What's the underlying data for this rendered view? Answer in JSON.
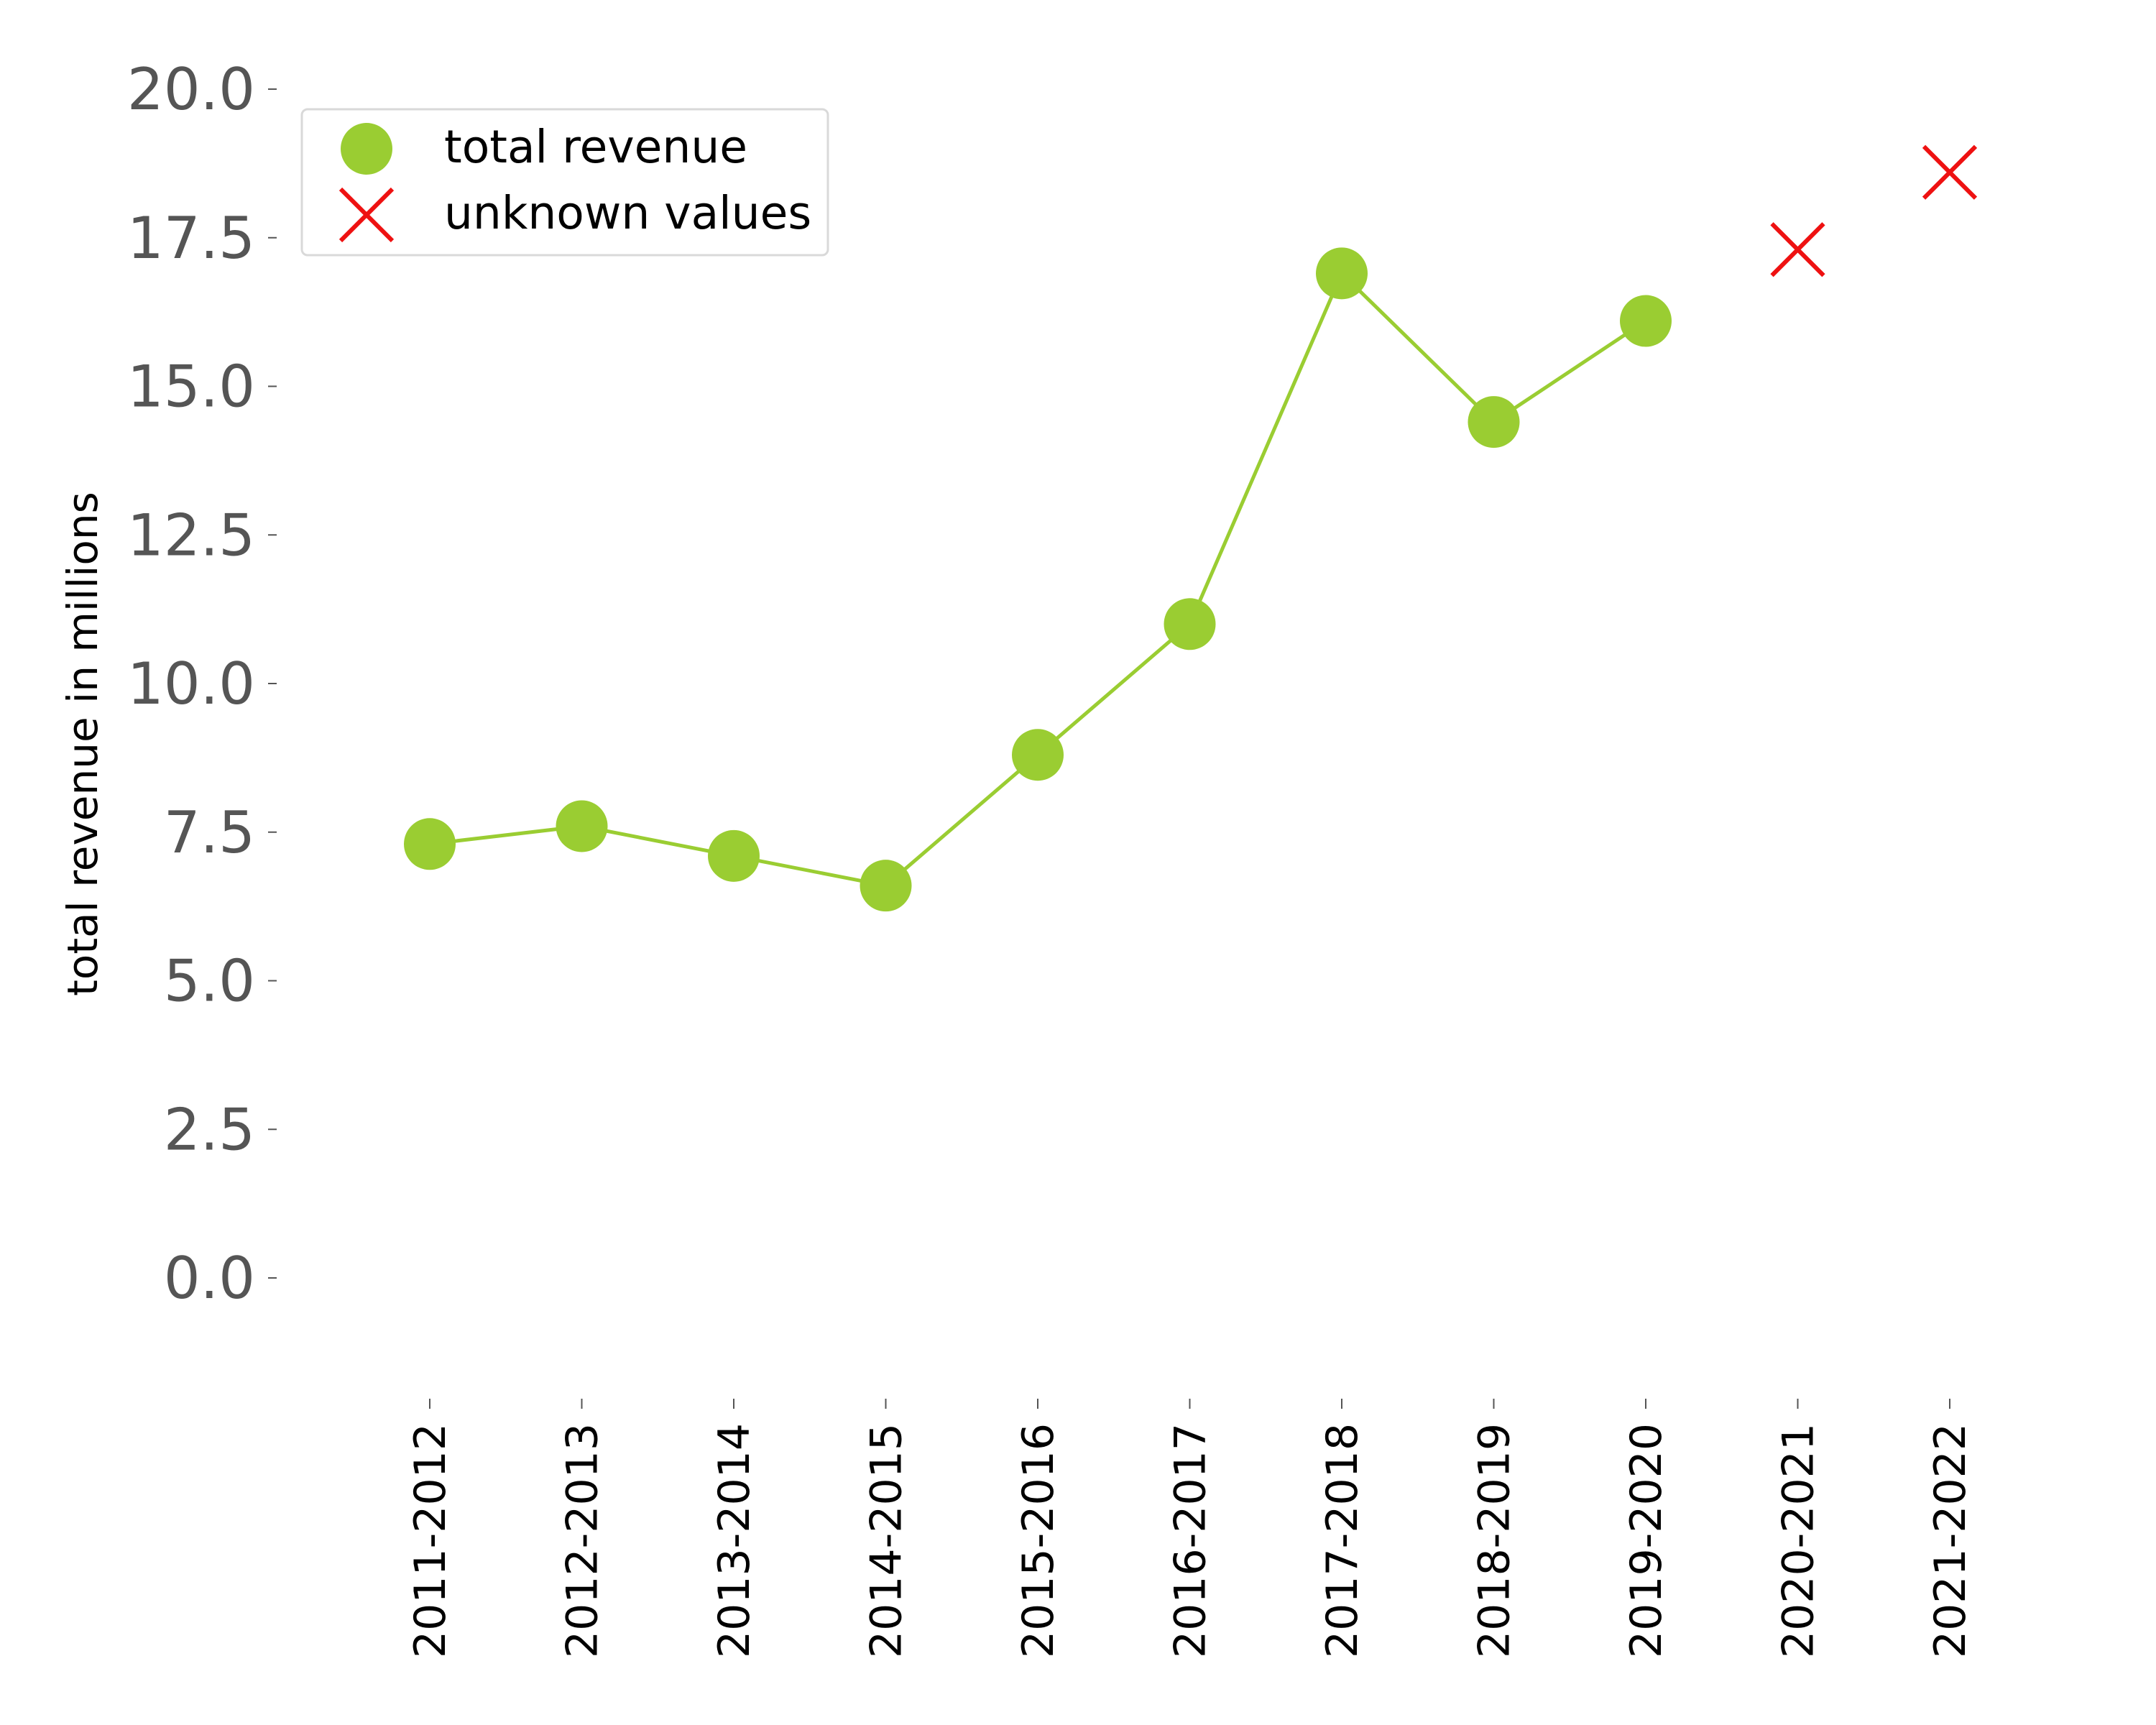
{
  "chart_data": {
    "type": "line",
    "ylabel": "total revenue in millions",
    "xlabel": "",
    "ylim": [
      -1.8,
      20.0
    ],
    "yticks": [
      0.0,
      2.5,
      5.0,
      7.5,
      10.0,
      12.5,
      15.0,
      17.5,
      20.0
    ],
    "ytick_labels": [
      "0.0",
      "2.5",
      "5.0",
      "7.5",
      "10.0",
      "12.5",
      "15.0",
      "17.5",
      "20.0"
    ],
    "categories": [
      "2011-2012",
      "2012-2013",
      "2013-2014",
      "2014-2015",
      "2015-2016",
      "2016-2017",
      "2017-2018",
      "2018-2019",
      "2019-2020",
      "2020-2021",
      "2021-2022"
    ],
    "series": [
      {
        "name": "total revenue",
        "marker": "circle",
        "color": "#9acd32",
        "values": [
          7.3,
          7.6,
          7.1,
          6.6,
          8.8,
          11.0,
          16.9,
          14.4,
          16.1,
          null,
          null
        ]
      },
      {
        "name": "unknown values",
        "marker": "x",
        "color": "#ee1111",
        "values": [
          null,
          null,
          null,
          null,
          null,
          null,
          null,
          null,
          null,
          17.3,
          18.6
        ]
      }
    ],
    "legend": {
      "position": "top-left"
    },
    "grid": false
  }
}
